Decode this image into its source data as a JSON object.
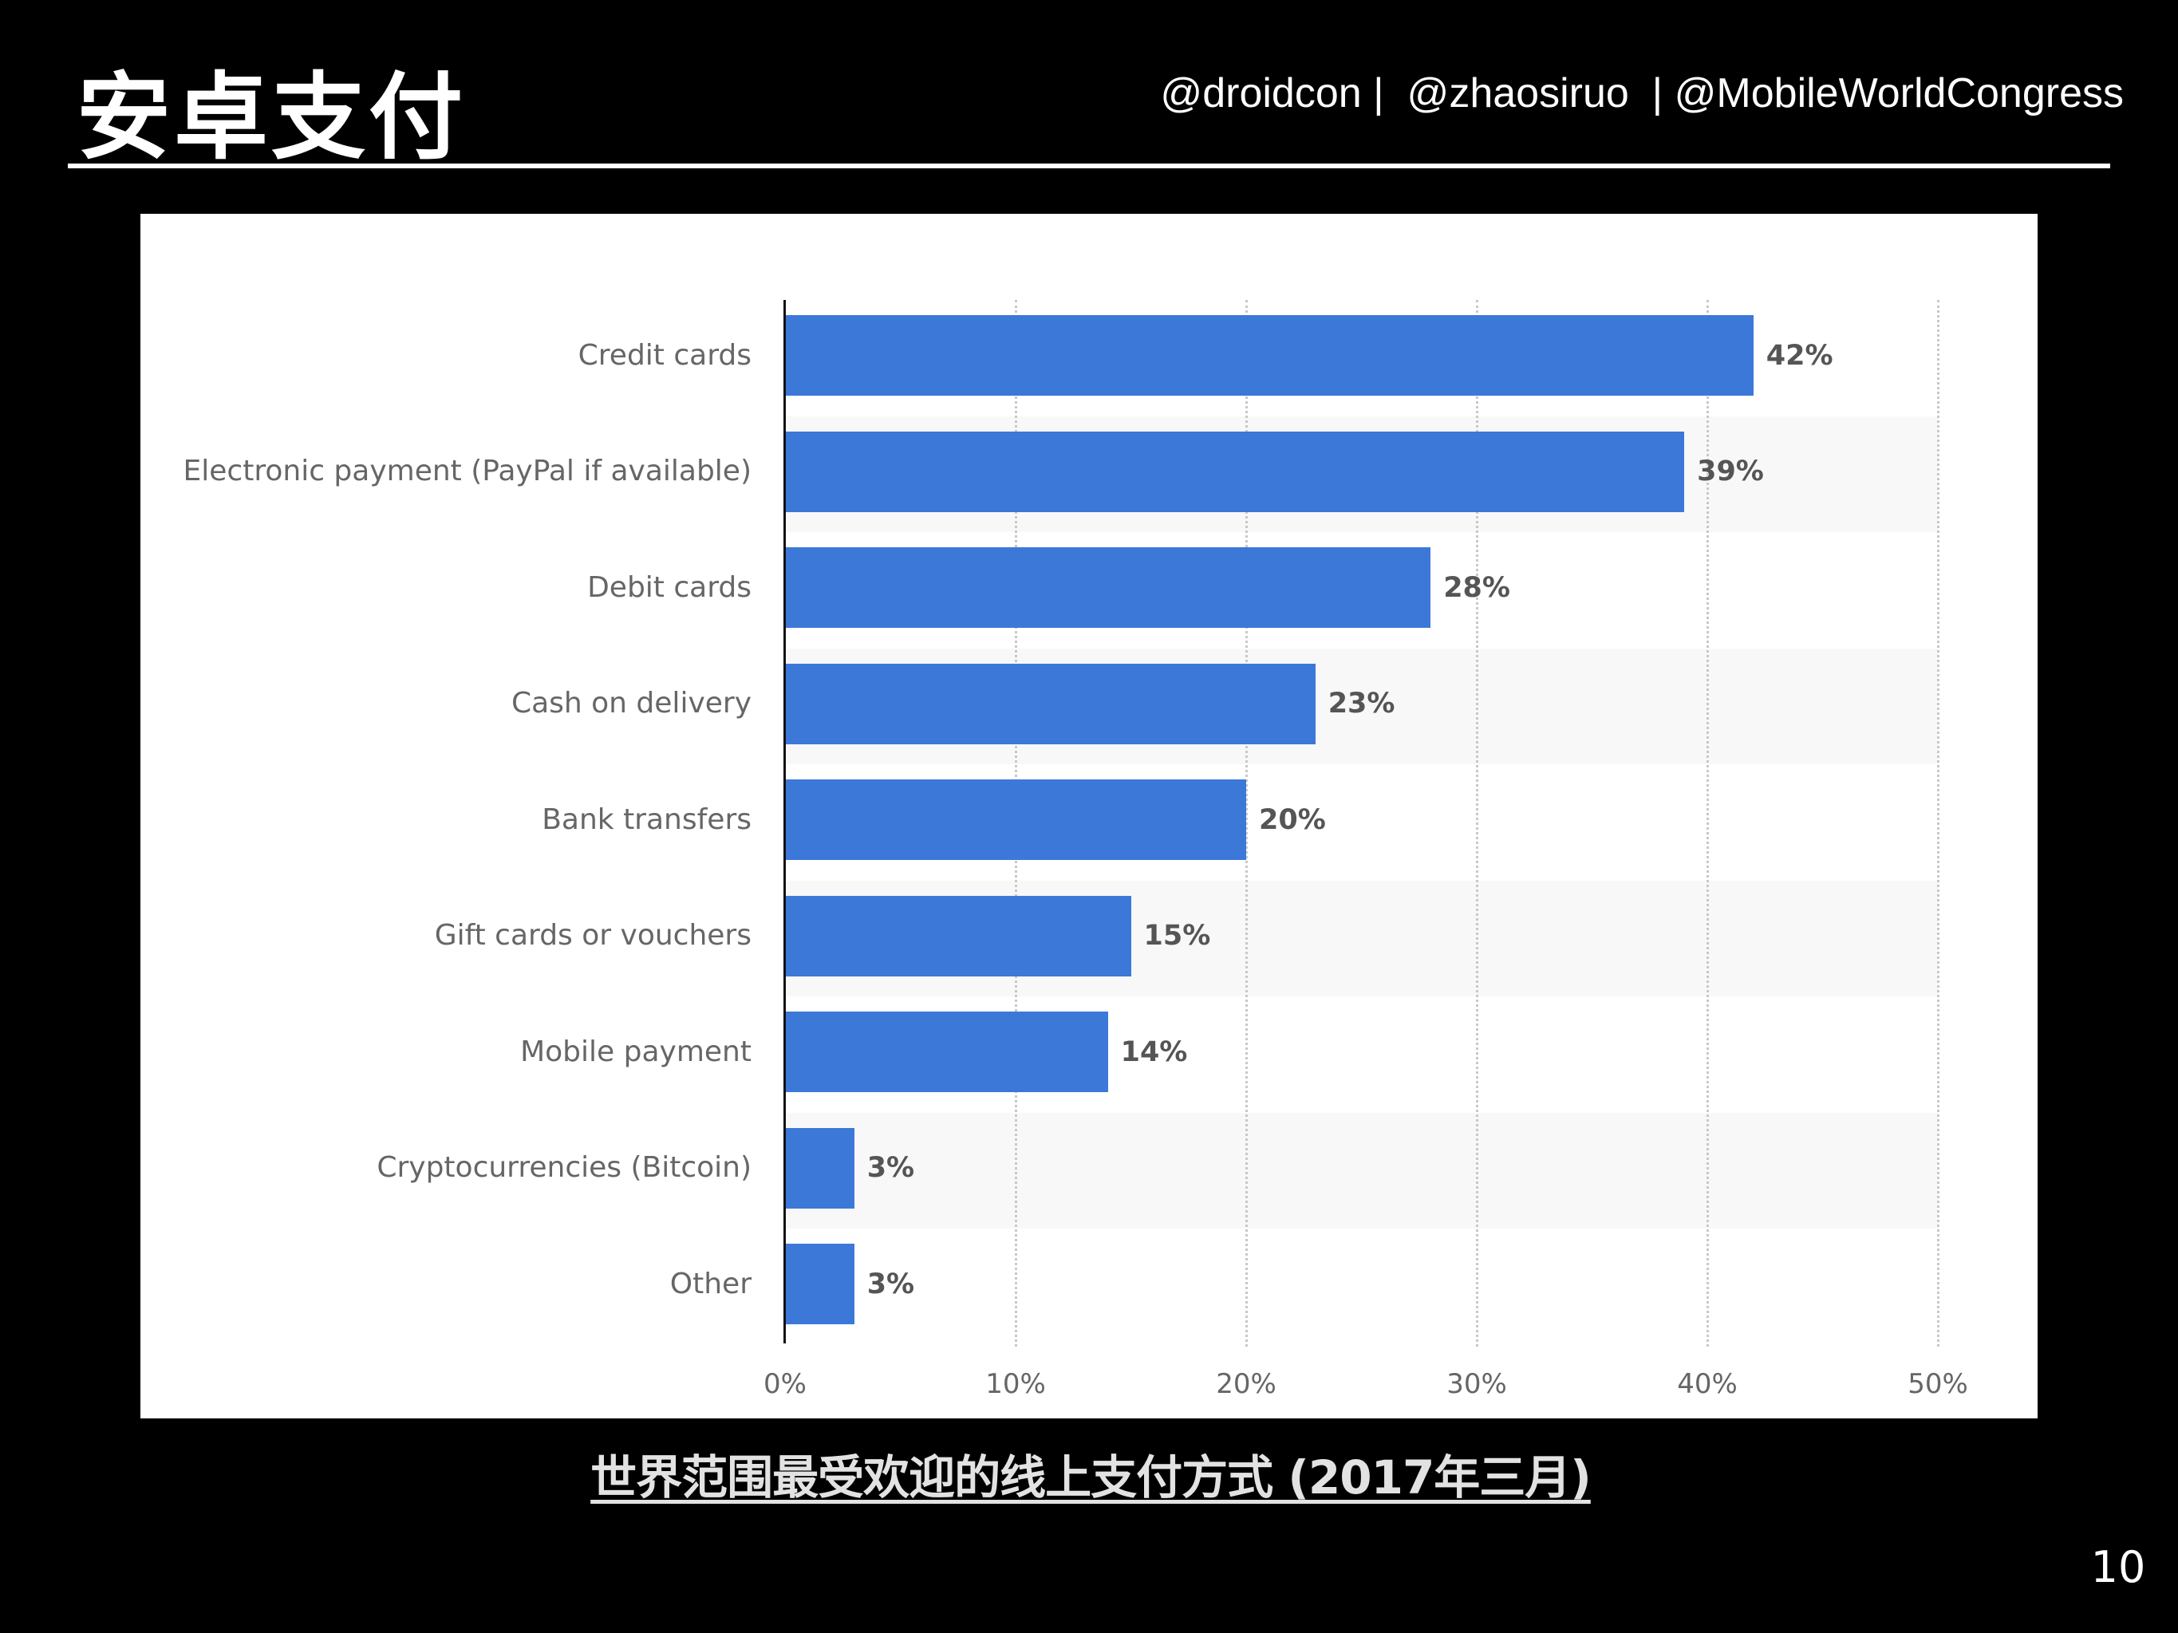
{
  "slide": {
    "title": "安卓支付",
    "handles": "@droidcon |  @zhaosiruo  | @MobileWorldCongress",
    "caption": "世界范围最受欢迎的线上支付方式 (2017年三月)",
    "page_number": "10"
  },
  "colors": {
    "bar": "#3c78d8",
    "background": "#000000",
    "panel": "#ffffff",
    "band": "#f8f8f8"
  },
  "chart_data": {
    "type": "bar",
    "orientation": "horizontal",
    "title": "",
    "xlabel": "",
    "ylabel": "",
    "categories": [
      "Credit cards",
      "Electronic payment (PayPal if available)",
      "Debit cards",
      "Cash on delivery",
      "Bank transfers",
      "Gift cards or vouchers",
      "Mobile payment",
      "Cryptocurrencies (Bitcoin)",
      "Other"
    ],
    "values": [
      42,
      39,
      28,
      23,
      20,
      15,
      14,
      3,
      3
    ],
    "value_labels": [
      "42%",
      "39%",
      "28%",
      "23%",
      "20%",
      "15%",
      "14%",
      "3%",
      "3%"
    ],
    "unit": "%",
    "xlim": [
      0,
      50
    ],
    "ticks": [
      "0%",
      "10%",
      "20%",
      "30%",
      "40%",
      "50%"
    ],
    "grid": "vertical dotted",
    "legend": "none"
  }
}
